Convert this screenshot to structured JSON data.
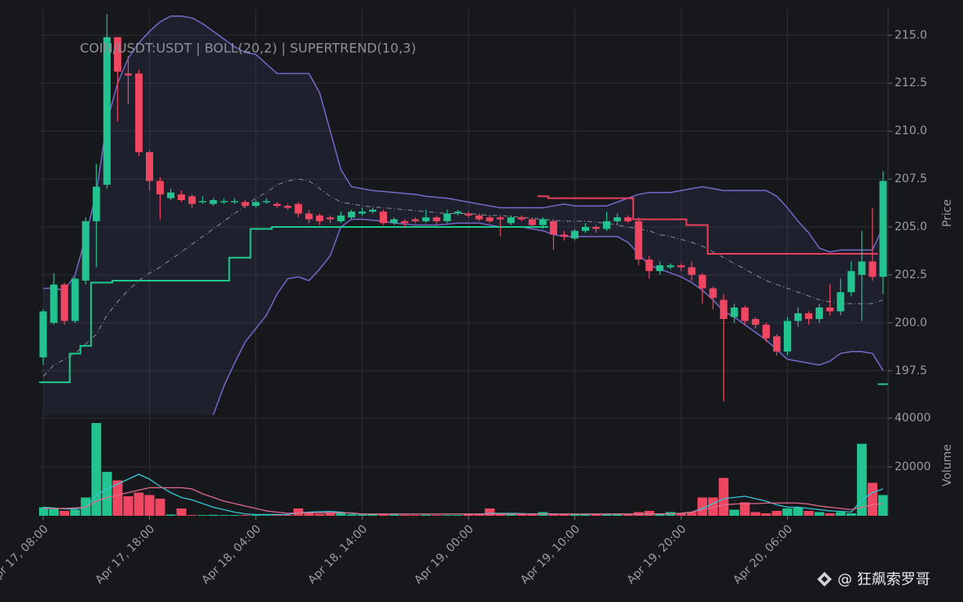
{
  "chart_data": [
    {
      "type": "candlestick",
      "title": "COIN/USDT:USDT | BOLL(20,2) | SUPERTREND(10,3)",
      "y_label": "Price",
      "up_color": "#22c38e",
      "down_color": "#ef4661",
      "open": [
        198.2,
        200.0,
        202.0,
        200.1,
        202.2,
        205.3,
        207.2,
        214.9,
        213.0,
        213.0,
        208.9,
        207.4,
        206.5,
        206.7,
        206.6,
        206.3,
        206.2,
        206.3,
        206.3,
        206.3,
        206.1,
        206.3,
        206.2,
        206.1,
        206.2,
        205.7,
        205.6,
        205.5,
        205.3,
        205.5,
        205.7,
        205.8,
        205.8,
        205.2,
        205.3,
        205.4,
        205.3,
        205.5,
        205.3,
        205.7,
        205.7,
        205.6,
        205.5,
        205.5,
        205.2,
        205.5,
        205.4,
        205.1,
        205.3,
        204.6,
        204.4,
        204.8,
        205.0,
        204.9,
        205.3,
        205.5,
        205.3,
        203.3,
        202.7,
        202.9,
        203.0,
        202.9,
        202.5,
        201.8,
        201.2,
        200.3,
        200.8,
        200.2,
        199.9,
        199.3,
        198.5,
        200.1,
        200.5,
        200.2,
        200.8,
        200.6,
        201.6,
        202.5,
        203.2,
        202.4
      ],
      "high": [
        200.7,
        202.6,
        202.1,
        202.4,
        205.5,
        208.3,
        216.1,
        214.9,
        213.9,
        213.2,
        209.0,
        207.6,
        207.0,
        206.9,
        206.7,
        206.6,
        206.5,
        206.5,
        206.5,
        206.4,
        206.4,
        206.5,
        206.3,
        206.2,
        206.3,
        205.9,
        205.7,
        205.6,
        205.8,
        205.9,
        206.0,
        206.0,
        205.9,
        205.5,
        205.4,
        205.5,
        205.9,
        205.6,
        205.9,
        205.9,
        205.8,
        205.7,
        205.6,
        205.6,
        205.6,
        205.6,
        205.5,
        205.5,
        205.4,
        204.8,
        204.9,
        205.2,
        205.1,
        205.8,
        205.7,
        205.6,
        205.5,
        203.5,
        203.2,
        203.1,
        203.1,
        203.2,
        202.6,
        201.9,
        201.5,
        201.0,
        200.9,
        200.3,
        200.0,
        199.4,
        200.3,
        200.8,
        200.6,
        201.0,
        202.0,
        202.3,
        203.2,
        204.8,
        206.0,
        207.9
      ],
      "low": [
        197.8,
        199.9,
        199.9,
        200.0,
        202.0,
        202.9,
        207.0,
        210.5,
        211.4,
        208.7,
        206.9,
        205.4,
        206.4,
        206.3,
        206.0,
        206.2,
        206.1,
        206.2,
        206.2,
        206.0,
        206.0,
        206.2,
        206.0,
        205.9,
        205.5,
        205.2,
        205.1,
        205.2,
        205.2,
        205.4,
        205.6,
        205.7,
        205.1,
        205.1,
        205.0,
        205.2,
        205.2,
        205.1,
        205.2,
        205.6,
        205.5,
        205.3,
        205.2,
        204.5,
        205.1,
        205.3,
        205.0,
        204.9,
        203.8,
        204.3,
        204.3,
        204.7,
        204.7,
        204.8,
        205.1,
        205.2,
        203.0,
        202.3,
        202.5,
        202.8,
        202.7,
        202.2,
        201.0,
        200.7,
        195.9,
        200.0,
        199.9,
        199.7,
        199.0,
        198.3,
        198.3,
        199.8,
        199.9,
        200.0,
        200.4,
        200.4,
        201.4,
        200.1,
        202.2,
        201.5
      ],
      "close": [
        200.6,
        202.0,
        200.1,
        202.3,
        205.3,
        207.1,
        214.9,
        213.1,
        212.9,
        208.9,
        207.4,
        206.7,
        206.8,
        206.4,
        206.2,
        206.35,
        206.4,
        206.35,
        206.35,
        206.1,
        206.3,
        206.35,
        206.1,
        206.0,
        205.7,
        205.4,
        205.3,
        205.4,
        205.6,
        205.8,
        205.8,
        205.9,
        205.2,
        205.4,
        205.2,
        205.3,
        205.5,
        205.3,
        205.7,
        205.8,
        205.6,
        205.4,
        205.3,
        205.4,
        205.5,
        205.4,
        205.1,
        205.4,
        204.6,
        204.5,
        204.8,
        205.0,
        204.9,
        205.3,
        205.5,
        205.3,
        203.3,
        202.7,
        203.0,
        203.0,
        202.9,
        202.5,
        201.8,
        201.3,
        200.2,
        200.8,
        200.1,
        199.9,
        199.2,
        198.5,
        200.1,
        200.5,
        200.2,
        200.8,
        200.6,
        201.6,
        202.7,
        203.2,
        202.4,
        207.4
      ],
      "bands": {
        "band_color": "#7468c8",
        "middle_color": "#8a8c92",
        "upper": [
          201.8,
          201.8,
          201.7,
          202.5,
          204.5,
          206.8,
          210.5,
          212.5,
          213.8,
          214.6,
          215.2,
          215.7,
          216.0,
          216.0,
          215.9,
          215.6,
          215.2,
          214.8,
          214.4,
          214.1,
          214.0,
          213.5,
          213.0,
          213.0,
          213.0,
          213.0,
          212.0,
          210.0,
          208.0,
          207.1,
          207.0,
          206.9,
          206.85,
          206.8,
          206.75,
          206.7,
          206.6,
          206.55,
          206.5,
          206.4,
          206.3,
          206.2,
          206.1,
          206.0,
          206.0,
          206.0,
          206.0,
          206.0,
          206.1,
          206.2,
          206.1,
          206.1,
          206.1,
          206.1,
          206.3,
          206.5,
          206.7,
          206.8,
          206.8,
          206.8,
          206.9,
          207.0,
          207.1,
          207.0,
          206.9,
          206.9,
          206.9,
          206.9,
          206.9,
          206.6,
          206.0,
          205.3,
          204.7,
          203.9,
          203.7,
          203.8,
          203.8,
          203.8,
          203.8,
          205.0
        ],
        "middle": [
          197.2,
          197.8,
          198.1,
          198.4,
          198.9,
          199.4,
          200.4,
          201.1,
          201.7,
          202.2,
          202.6,
          202.9,
          203.3,
          203.7,
          204.1,
          204.5,
          204.9,
          205.3,
          205.7,
          206.1,
          206.5,
          206.8,
          207.2,
          207.4,
          207.5,
          207.4,
          207.0,
          206.6,
          206.3,
          206.2,
          206.1,
          206.05,
          206.0,
          205.95,
          205.9,
          205.85,
          205.8,
          205.75,
          205.7,
          205.7,
          205.7,
          205.65,
          205.6,
          205.6,
          205.55,
          205.5,
          205.45,
          205.4,
          205.35,
          205.3,
          205.3,
          205.3,
          205.25,
          205.2,
          205.1,
          205.0,
          204.9,
          204.8,
          204.6,
          204.5,
          204.35,
          204.2,
          204.0,
          203.7,
          203.4,
          203.1,
          202.8,
          202.5,
          202.2,
          202.0,
          201.8,
          201.6,
          201.4,
          201.2,
          201.1,
          201.0,
          201.0,
          201.0,
          201.0,
          201.2
        ],
        "lower": [
          null,
          null,
          null,
          null,
          null,
          null,
          null,
          null,
          null,
          null,
          null,
          null,
          null,
          null,
          null,
          null,
          195.2,
          196.7,
          197.9,
          199.0,
          199.7,
          200.4,
          201.5,
          202.3,
          202.4,
          202.2,
          202.8,
          203.5,
          205.0,
          205.4,
          205.4,
          205.35,
          205.3,
          205.2,
          205.15,
          205.1,
          205.1,
          205.1,
          205.15,
          205.2,
          205.2,
          205.2,
          205.1,
          205.0,
          205.0,
          205.0,
          204.9,
          204.8,
          204.6,
          204.5,
          204.5,
          204.5,
          204.5,
          204.5,
          204.5,
          204.2,
          203.6,
          203.0,
          202.8,
          202.6,
          202.4,
          202.1,
          201.7,
          201.2,
          200.6,
          200.3,
          199.9,
          199.5,
          199.1,
          198.6,
          198.1,
          198.0,
          197.9,
          197.8,
          198.0,
          198.4,
          198.5,
          198.5,
          198.4,
          197.5
        ]
      },
      "supertrend": [
        {
          "color": "#1fca8e",
          "values": [
            196.9,
            196.9,
            196.9,
            198.4,
            198.8,
            202.1,
            202.1,
            202.2,
            202.2,
            202.2,
            202.2,
            202.2,
            202.2,
            202.2,
            202.2,
            202.2,
            202.2,
            202.2,
            203.4,
            203.4,
            204.9,
            204.9,
            205.0,
            205.0,
            205.0,
            205.0,
            205.0,
            205.0,
            205.0,
            205.0,
            205.0,
            205.0,
            205.0,
            205.0,
            205.0,
            205.0,
            205.0,
            205.0,
            205.0,
            205.0,
            205.0,
            205.0,
            205.0,
            205.0,
            205.0,
            205.0,
            205.0,
            205.0,
            null,
            null,
            null,
            null,
            null,
            null,
            null,
            null,
            null,
            null,
            null,
            null,
            null,
            null,
            null,
            null,
            null,
            null,
            null,
            null,
            null,
            null,
            null,
            null,
            null,
            null,
            null,
            null,
            null,
            null,
            null,
            196.8
          ]
        },
        {
          "color": "#e8405a",
          "values": [
            null,
            null,
            null,
            null,
            null,
            null,
            null,
            null,
            null,
            null,
            null,
            null,
            null,
            null,
            null,
            null,
            null,
            null,
            null,
            null,
            null,
            null,
            null,
            null,
            null,
            null,
            null,
            null,
            null,
            null,
            null,
            null,
            null,
            null,
            null,
            null,
            null,
            null,
            null,
            null,
            null,
            null,
            null,
            null,
            null,
            null,
            null,
            206.6,
            206.5,
            206.5,
            206.5,
            206.5,
            206.5,
            206.5,
            206.5,
            206.5,
            205.4,
            205.4,
            205.4,
            205.4,
            205.4,
            205.1,
            205.1,
            203.6,
            203.6,
            203.6,
            203.6,
            203.6,
            203.6,
            203.6,
            203.6,
            203.6,
            203.6,
            203.6,
            203.6,
            203.6,
            203.6,
            203.6,
            203.6,
            null
          ]
        }
      ],
      "ylim": [
        195.2,
        216.2
      ],
      "yticks": [
        197.5,
        {
          "value": 200,
          "label": "200.0"
        },
        202.5,
        {
          "value": 205,
          "label": "205.0"
        },
        207.5,
        {
          "value": 210,
          "label": "210.0"
        },
        212.5,
        {
          "value": 215,
          "label": "215.0"
        }
      ],
      "grid": true
    },
    {
      "type": "bar",
      "y_label": "Volume",
      "categories": [
        "Apr 17, 08:00",
        null,
        null,
        null,
        null,
        null,
        null,
        null,
        null,
        null,
        "Apr 17, 18:00",
        null,
        null,
        null,
        null,
        null,
        null,
        null,
        null,
        null,
        "Apr 18, 04:00",
        null,
        null,
        null,
        null,
        null,
        null,
        null,
        null,
        null,
        "Apr 18, 14:00",
        null,
        null,
        null,
        null,
        null,
        null,
        null,
        null,
        null,
        "Apr 19, 00:00",
        null,
        null,
        null,
        null,
        null,
        null,
        null,
        null,
        null,
        "Apr 19, 10:00",
        null,
        null,
        null,
        null,
        null,
        null,
        null,
        null,
        null,
        "Apr 19, 20:00",
        null,
        null,
        null,
        null,
        null,
        null,
        null,
        null,
        null,
        "Apr 20, 06:00",
        null,
        null,
        null,
        null,
        null,
        null,
        null,
        null,
        null
      ],
      "values": [
        3500,
        3000,
        2000,
        2500,
        7500,
        38000,
        18000,
        14500,
        8000,
        9500,
        8500,
        7000,
        500,
        3000,
        300,
        300,
        400,
        300,
        300,
        300,
        300,
        200,
        300,
        300,
        3000,
        1000,
        800,
        1500,
        1500,
        600,
        500,
        500,
        500,
        600,
        400,
        300,
        400,
        300,
        300,
        300,
        500,
        600,
        3000,
        1000,
        800,
        800,
        500,
        1500,
        1000,
        700,
        500,
        600,
        600,
        800,
        900,
        600,
        1500,
        2000,
        1000,
        1500,
        1200,
        1500,
        7500,
        7500,
        15500,
        2500,
        5500,
        1500,
        1000,
        2000,
        3000,
        3500,
        2000,
        1500,
        1000,
        1500,
        1000,
        29500,
        13500,
        8500
      ],
      "moving_averages": [
        {
          "color": "#35c6d6",
          "values": [
            3500,
            3200,
            2800,
            2800,
            3500,
            8500,
            11000,
            13000,
            15000,
            17000,
            15000,
            12000,
            9500,
            7500,
            6500,
            5000,
            3500,
            2500,
            1500,
            800,
            500,
            500,
            500,
            500,
            1200,
            1500,
            1700,
            1800,
            1500,
            1000,
            700,
            700,
            700,
            700,
            700,
            700,
            700,
            700,
            700,
            700,
            700,
            700,
            1000,
            1000,
            1000,
            900,
            800,
            800,
            800,
            700,
            700,
            700,
            700,
            700,
            700,
            700,
            700,
            700,
            700,
            700,
            1000,
            1500,
            3000,
            5000,
            7000,
            7500,
            8000,
            7000,
            6000,
            4500,
            3500,
            3500,
            3000,
            2500,
            2000,
            1800,
            1500,
            6500,
            9500,
            11000
          ]
        },
        {
          "color": "#df6a8c",
          "values": [
            3000,
            3000,
            3000,
            3200,
            3500,
            6000,
            7500,
            8500,
            9500,
            10500,
            11500,
            11500,
            11500,
            11500,
            11000,
            9000,
            7500,
            6000,
            5000,
            4000,
            3000,
            2000,
            1500,
            1000,
            1200,
            1200,
            1200,
            1200,
            1200,
            1200,
            700,
            700,
            700,
            700,
            700,
            700,
            700,
            700,
            700,
            700,
            700,
            700,
            700,
            700,
            700,
            700,
            700,
            700,
            700,
            700,
            700,
            700,
            700,
            700,
            700,
            700,
            800,
            800,
            800,
            800,
            1000,
            1500,
            2500,
            3500,
            4500,
            4800,
            5000,
            5000,
            5200,
            5200,
            5300,
            5200,
            4800,
            4000,
            3500,
            3000,
            2500,
            3500,
            4500,
            5000
          ]
        }
      ],
      "ylim": [
        0,
        40000
      ],
      "yticks": [
        20000,
        40000
      ],
      "grid": true
    }
  ],
  "watermark": "@ 狂飙索罗哥"
}
